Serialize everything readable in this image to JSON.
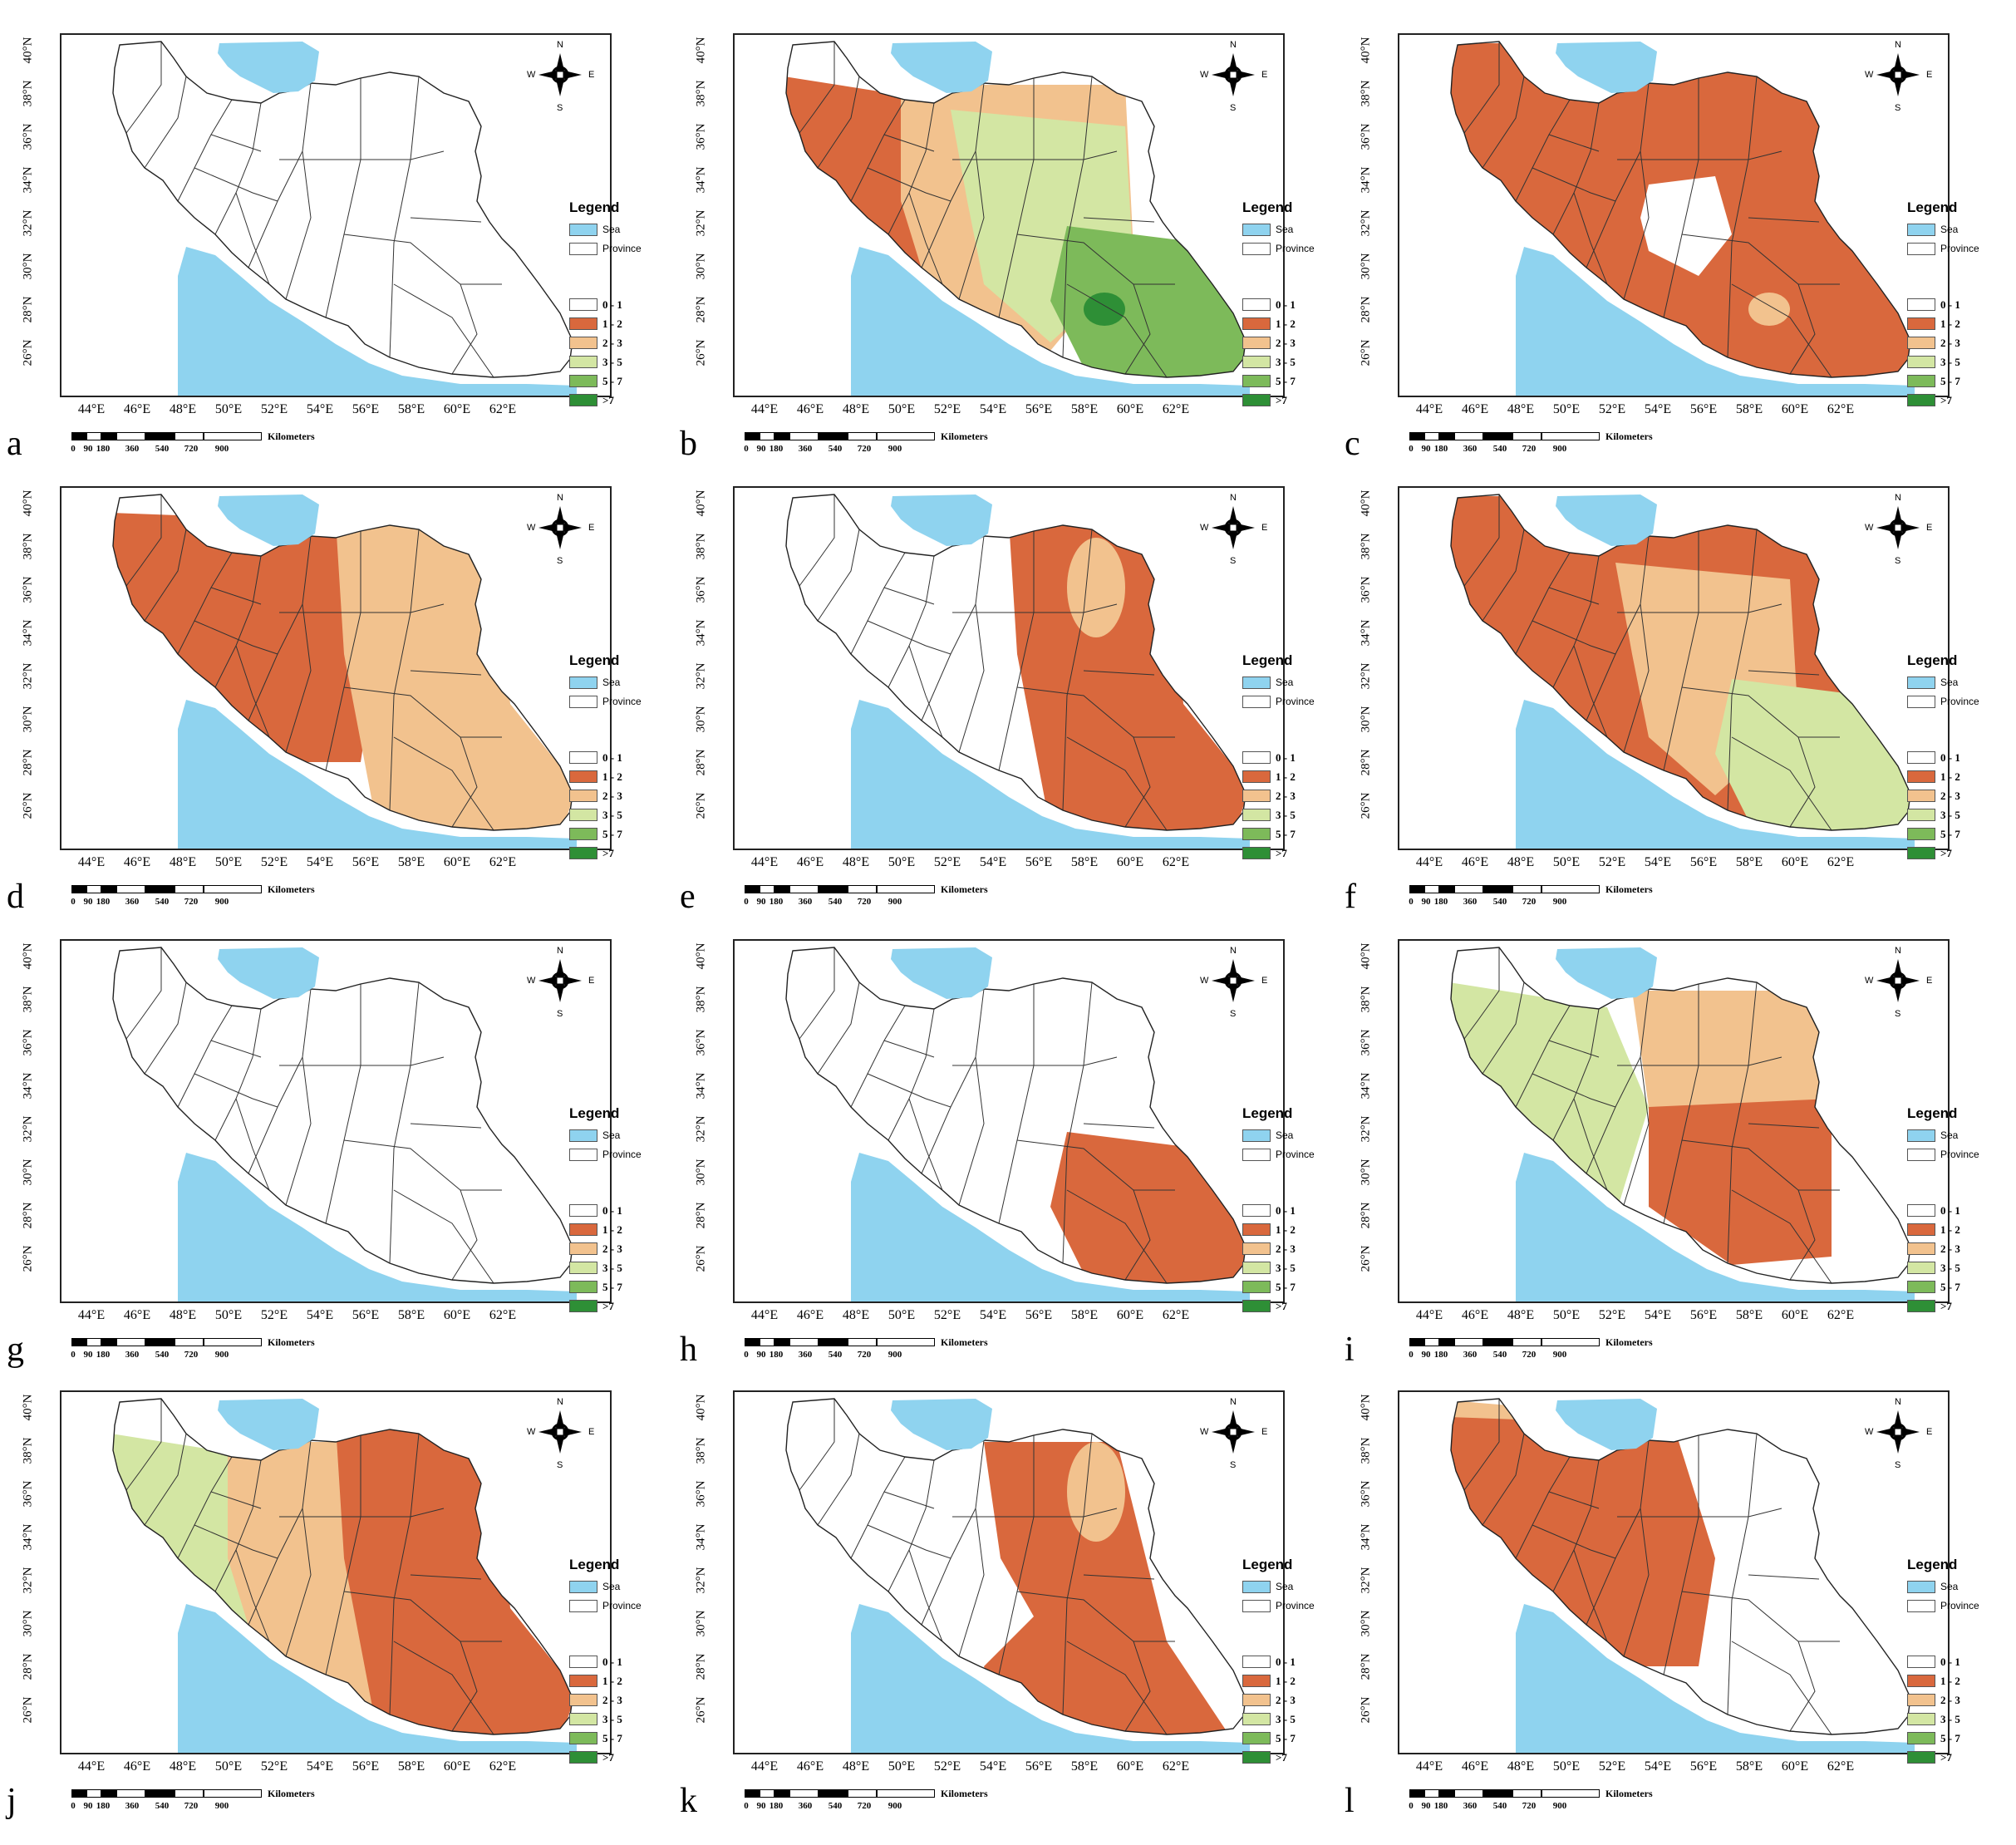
{
  "figure": {
    "latitude_labels": [
      "40°N",
      "38°N",
      "36°N",
      "34°N",
      "32°N",
      "30°N",
      "28°N",
      "26°N"
    ],
    "longitude_labels": [
      "44°E",
      "46°E",
      "48°E",
      "50°E",
      "52°E",
      "54°E",
      "56°E",
      "58°E",
      "60°E",
      "62°E"
    ],
    "scale_bar": {
      "ticks": [
        "0",
        "90",
        "180",
        "360",
        "540",
        "720",
        "900"
      ],
      "unit": "Kilometers"
    },
    "compass": {
      "n": "N",
      "s": "S",
      "e": "E",
      "w": "W"
    },
    "legend": {
      "title": "Legend",
      "sea_label": "Sea",
      "province_label": "Province",
      "classes": [
        {
          "label": "0 - 1",
          "color": "#ffffff"
        },
        {
          "label": "1 - 2",
          "color": "#d9683d"
        },
        {
          "label": "2 - 3",
          "color": "#f2c28e"
        },
        {
          "label": "3 - 5",
          "color": "#d3e6a3"
        },
        {
          "label": "5 - 7",
          "color": "#7dba5a"
        },
        {
          "label": ">7",
          "color": "#2e8f36"
        }
      ]
    },
    "colors": {
      "sea": "#8fd3ef",
      "border": "#222222",
      "province_line": "#333333"
    }
  },
  "panels": [
    {
      "letter": "a",
      "fills": []
    },
    {
      "letter": "b",
      "fills": [
        {
          "cls": "1",
          "shape": "w"
        },
        {
          "cls": "2",
          "shape": "c"
        },
        {
          "cls": "3",
          "shape": "ce"
        },
        {
          "cls": "4",
          "shape": "se"
        },
        {
          "cls": "5",
          "shape": "sedot"
        }
      ]
    },
    {
      "letter": "c",
      "fills": [
        {
          "cls": "1",
          "shape": "all"
        },
        {
          "cls": "0",
          "shape": "centerhole"
        },
        {
          "cls": "2",
          "shape": "sedot"
        }
      ]
    },
    {
      "letter": "d",
      "fills": [
        {
          "cls": "1",
          "shape": "wc"
        },
        {
          "cls": "2",
          "shape": "e"
        }
      ]
    },
    {
      "letter": "e",
      "fills": [
        {
          "cls": "1",
          "shape": "e"
        },
        {
          "cls": "2",
          "shape": "nedot"
        }
      ]
    },
    {
      "letter": "f",
      "fills": [
        {
          "cls": "1",
          "shape": "all"
        },
        {
          "cls": "2",
          "shape": "ce"
        },
        {
          "cls": "3",
          "shape": "se"
        }
      ]
    },
    {
      "letter": "g",
      "fills": []
    },
    {
      "letter": "h",
      "fills": [
        {
          "cls": "1",
          "shape": "se"
        }
      ]
    },
    {
      "letter": "i",
      "fills": [
        {
          "cls": "3",
          "shape": "w"
        },
        {
          "cls": "2",
          "shape": "ne"
        },
        {
          "cls": "1",
          "shape": "sce"
        }
      ]
    },
    {
      "letter": "j",
      "fills": [
        {
          "cls": "3",
          "shape": "w"
        },
        {
          "cls": "2",
          "shape": "c"
        },
        {
          "cls": "1",
          "shape": "e"
        }
      ]
    },
    {
      "letter": "k",
      "fills": [
        {
          "cls": "1",
          "shape": "eband"
        },
        {
          "cls": "2",
          "shape": "nedot"
        }
      ]
    },
    {
      "letter": "l",
      "fills": [
        {
          "cls": "2",
          "shape": "nw"
        },
        {
          "cls": "1",
          "shape": "wc"
        }
      ]
    }
  ]
}
